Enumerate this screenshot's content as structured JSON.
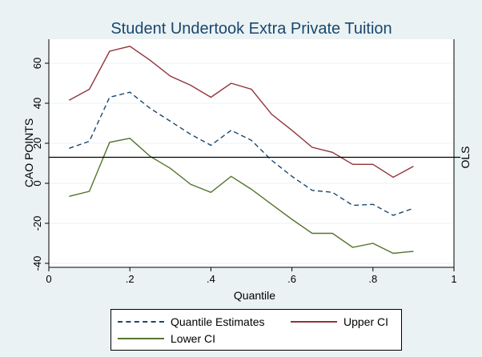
{
  "chart_data": {
    "type": "line",
    "title": "Student Undertook Extra Private Tuition",
    "xlabel": "Quantile",
    "ylabel": "CAO POINTS",
    "xlim": [
      0,
      1
    ],
    "ylim": [
      -42,
      72
    ],
    "x_ticks": [
      0,
      0.2,
      0.4,
      0.6,
      0.8,
      1
    ],
    "x_tick_labels": [
      "0",
      ".2",
      ".4",
      ".6",
      ".8",
      "1"
    ],
    "y_ticks": [
      -40,
      -20,
      0,
      20,
      40,
      60
    ],
    "y_tick_labels": [
      "-40",
      "-20",
      "0",
      "20",
      "40",
      "60"
    ],
    "grid": true,
    "x": [
      0.05,
      0.1,
      0.15,
      0.2,
      0.25,
      0.3,
      0.35,
      0.4,
      0.45,
      0.5,
      0.55,
      0.6,
      0.65,
      0.7,
      0.75,
      0.8,
      0.85,
      0.9
    ],
    "series": [
      {
        "name": "Quantile Estimates",
        "color": "#1a476f",
        "style": "dashed",
        "values": [
          17.5,
          21,
          43,
          45.5,
          37.5,
          31,
          24.5,
          19,
          26.5,
          21.5,
          11.5,
          3.5,
          -3.5,
          -4.5,
          -11,
          -10.5,
          -16,
          -12.5
        ]
      },
      {
        "name": "Upper CI",
        "color": "#90353b",
        "style": "solid",
        "values": [
          41.5,
          47,
          66,
          68.5,
          61.5,
          53.5,
          49,
          43,
          50,
          47,
          34.5,
          26.5,
          18,
          15.5,
          9.5,
          9.5,
          3,
          8.5
        ]
      },
      {
        "name": "Lower CI",
        "color": "#55752f",
        "style": "solid",
        "values": [
          -6.5,
          -4,
          20.5,
          22.5,
          13.5,
          7.5,
          -0.5,
          -4.5,
          3.5,
          -3,
          -10.5,
          -18,
          -25,
          -25,
          -32,
          -30,
          -35,
          -34
        ]
      }
    ],
    "reference_line": {
      "label": "OLS",
      "value": 13,
      "color": "#000000"
    },
    "legend": {
      "position": "bottom",
      "entries": [
        "Quantile Estimates",
        "Upper CI",
        "Lower CI"
      ]
    }
  }
}
